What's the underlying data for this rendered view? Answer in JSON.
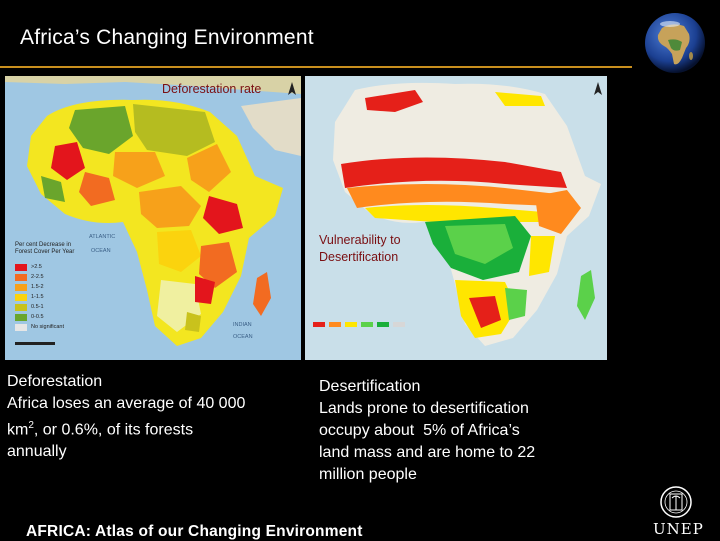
{
  "header": {
    "title": "Africa’s Changing Environment"
  },
  "maps": {
    "left": {
      "label": "Deforestation rate",
      "legend_title": "Per cent Decrease in Forest Cover Per Year",
      "legend_items": [
        ">2.5",
        "2-2.5",
        "1.5-2",
        "1-1.5",
        "0.5-1",
        "0-0.5",
        "No significant"
      ],
      "legend_colors": [
        "#e3151c",
        "#f26b21",
        "#f7a11a",
        "#fbd30e",
        "#c9c21c",
        "#6aa52c",
        "#e6e6e6"
      ],
      "ocean_labels": [
        "ATLANTIC",
        "OCEAN",
        "INDIAN",
        "OCEAN"
      ]
    },
    "right": {
      "label_line1": "Vulnerability to",
      "label_line2": "Desertification",
      "colors": [
        "#e52019",
        "#ff8a1e",
        "#ffe600",
        "#5bd14a",
        "#1aaf3a",
        "#d7d7d7"
      ]
    }
  },
  "captions": {
    "left": {
      "heading": "Deforestation",
      "line1": "Africa loses an average of 40 000",
      "line2_pre": "km",
      "line2_sup": "2",
      "line2_post": ", or 0.6%, of its forests",
      "line3": "annually"
    },
    "right": {
      "heading": "Desertification",
      "line1": "Lands prone to desertification",
      "line2": "occupy about  5% of Africa’s",
      "line3": "land mass and are home to 22",
      "line4": "million people"
    }
  },
  "footer": {
    "text": "AFRICA: Atlas of our Changing Environment"
  },
  "logo": {
    "text": "UNEP"
  }
}
